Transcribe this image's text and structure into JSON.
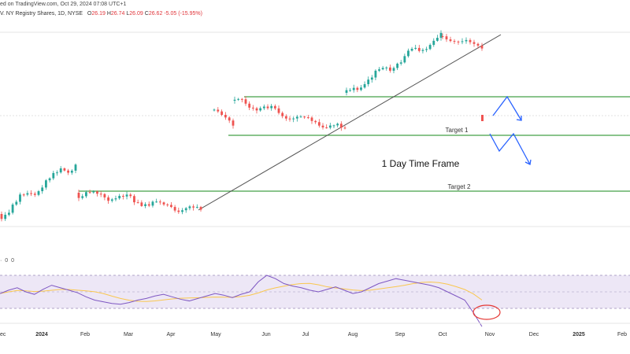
{
  "header": {
    "published_line": "ed on TradingView.com, Oct 29, 2024 07:08 UTC+1",
    "symbol_line": "V. NY Registry Shares, 1D, NYSE",
    "open_label": "O",
    "open": "26.19",
    "high_label": "H",
    "high": "26.74",
    "low_label": "L",
    "low": "26.09",
    "close_label": "C",
    "close": "26.62",
    "change": "-5.05 (-15.95%)"
  },
  "rsi_label": "· 0 0",
  "colors": {
    "up": "#26a69a",
    "down": "#ef5350",
    "level": "#43a047",
    "trend": "#555555",
    "arrow": "#2962ff",
    "rsi_line": "#7e57c2",
    "rsi_ma": "#f9c74f",
    "rsi_band": "#ede7f6",
    "circle": "#e53935"
  },
  "chart_data": {
    "type": "candlestick",
    "title": "",
    "annotation_main": "1 Day Time Frame",
    "levels": [
      {
        "label": "",
        "y": 0.0
      },
      {
        "label": "Target 1",
        "y": 0.0
      },
      {
        "label": "Target 2",
        "y": 0.0
      }
    ],
    "x_ticks": [
      "ec",
      "2024",
      "Feb",
      "Mar",
      "Apr",
      "May",
      "Jun",
      "Jul",
      "Aug",
      "Sep",
      "Oct",
      "Nov",
      "Dec",
      "2025",
      "Feb"
    ],
    "candles": [
      [
        0.72,
        0.74,
        0.7,
        0.73
      ],
      [
        0.73,
        0.75,
        0.72,
        0.74
      ],
      [
        0.74,
        0.76,
        0.73,
        0.75
      ],
      [
        0.75,
        0.77,
        0.74,
        0.76
      ],
      [
        0.76,
        0.8,
        0.75,
        0.79
      ],
      [
        0.79,
        0.82,
        0.78,
        0.81
      ],
      [
        0.81,
        0.84,
        0.8,
        0.83
      ],
      [
        0.83,
        0.85,
        0.82,
        0.84
      ],
      [
        0.84,
        0.86,
        0.83,
        0.85
      ],
      [
        0.85,
        0.85,
        0.82,
        0.83
      ],
      [
        0.83,
        0.86,
        0.82,
        0.85
      ],
      [
        0.85,
        0.88,
        0.84,
        0.87
      ],
      [
        0.87,
        0.89,
        0.86,
        0.88
      ],
      [
        0.88,
        0.88,
        0.85,
        0.86
      ],
      [
        0.86,
        0.87,
        0.84,
        0.85
      ],
      [
        0.85,
        0.85,
        0.82,
        0.83
      ],
      [
        0.83,
        0.84,
        0.8,
        0.81
      ],
      [
        0.81,
        0.82,
        0.77,
        0.78
      ],
      [
        0.78,
        0.79,
        0.75,
        0.76
      ],
      [
        0.76,
        0.77,
        0.74,
        0.75
      ],
      [
        0.75,
        0.76,
        0.73,
        0.74
      ],
      [
        0.74,
        0.75,
        0.72,
        0.73
      ],
      [
        0.73,
        0.75,
        0.72,
        0.74
      ],
      [
        0.74,
        0.75,
        0.72,
        0.73
      ],
      [
        0.73,
        0.74,
        0.71,
        0.72
      ],
      [
        0.72,
        0.74,
        0.71,
        0.73
      ],
      [
        0.73,
        0.75,
        0.72,
        0.74
      ],
      [
        0.74,
        0.76,
        0.73,
        0.75
      ],
      [
        0.75,
        0.77,
        0.74,
        0.76
      ],
      [
        0.76,
        0.77,
        0.74,
        0.75
      ],
      [
        0.75,
        0.76,
        0.73,
        0.74
      ],
      [
        0.74,
        0.75,
        0.72,
        0.73
      ],
      [
        0.73,
        0.74,
        0.71,
        0.72
      ],
      [
        0.72,
        0.73,
        0.71,
        0.72
      ],
      [
        0.72,
        0.74,
        0.71,
        0.73
      ],
      [
        0.73,
        0.75,
        0.72,
        0.74
      ],
      [
        0.74,
        0.75,
        0.72,
        0.73
      ],
      [
        0.73,
        0.74,
        0.71,
        0.72
      ],
      [
        0.72,
        0.73,
        0.7,
        0.71
      ],
      [
        0.71,
        0.73,
        0.7,
        0.72
      ],
      [
        0.72,
        0.74,
        0.71,
        0.73
      ],
      [
        0.73,
        0.75,
        0.72,
        0.74
      ]
    ],
    "rsi": [
      48,
      52,
      55,
      50,
      47,
      53,
      58,
      55,
      52,
      49,
      44,
      40,
      38,
      36,
      35,
      37,
      40,
      42,
      45,
      47,
      44,
      41,
      39,
      42,
      45,
      48,
      46,
      43,
      47,
      50,
      62,
      70,
      66,
      60,
      57,
      55,
      52,
      50,
      53,
      56,
      52,
      48,
      50,
      55,
      60,
      63,
      66,
      64,
      62,
      60,
      58,
      55,
      50,
      45,
      40,
      25,
      8
    ],
    "rsi_levels": [
      70,
      50,
      30
    ]
  }
}
